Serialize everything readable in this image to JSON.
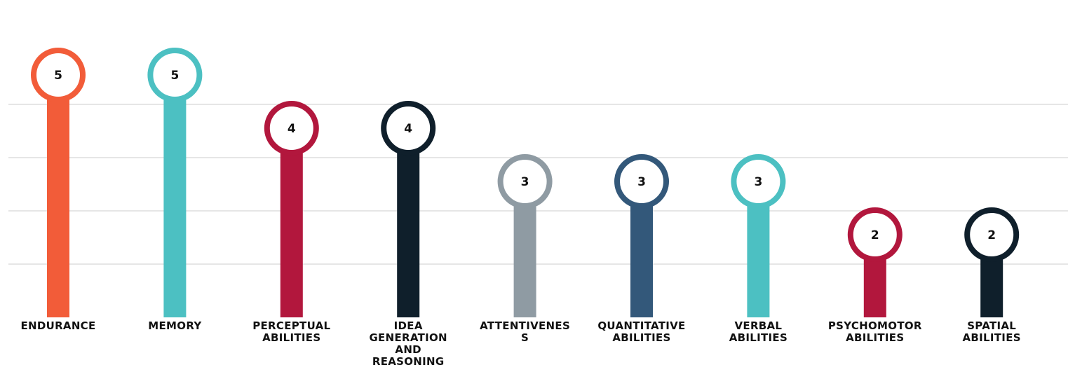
{
  "chart_data": {
    "type": "lollipop",
    "categories": [
      [
        "ENDURANCE"
      ],
      [
        "MEMORY"
      ],
      [
        "PERCEPTUAL",
        "ABILITIES"
      ],
      [
        "IDEA",
        "GENERATION",
        "AND",
        "REASONING"
      ],
      [
        "ATTENTIVENES",
        "S"
      ],
      [
        "QUANTITATIVE",
        "ABILITIES"
      ],
      [
        "VERBAL",
        "ABILITIES"
      ],
      [
        "PSYCHOMOTOR",
        "ABILITIES"
      ],
      [
        "SPATIAL",
        "ABILITIES"
      ]
    ],
    "values": [
      5,
      5,
      4,
      4,
      3,
      3,
      3,
      2,
      2
    ],
    "colors": [
      "#f25c39",
      "#4cc0c2",
      "#b2173d",
      "#0f1f2b",
      "#8f9ba3",
      "#33587a",
      "#4cc0c2",
      "#b2173d",
      "#0f1f2b"
    ],
    "title": "",
    "xlabel": "",
    "ylabel": "",
    "ylim": [
      0,
      5
    ],
    "grid": true
  }
}
